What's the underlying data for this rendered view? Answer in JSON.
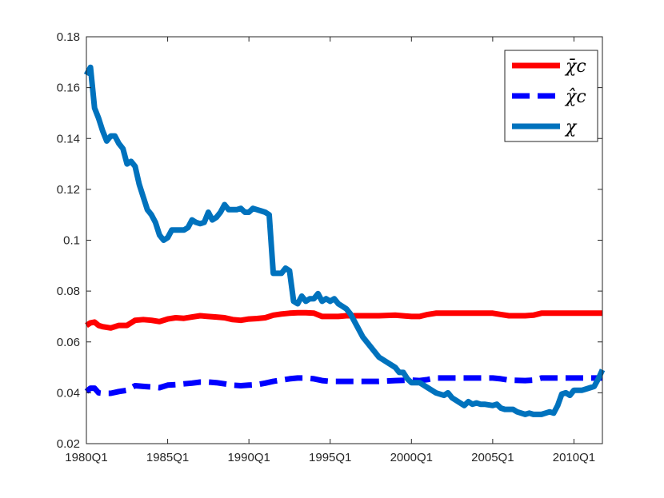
{
  "chart_data": {
    "type": "line",
    "title": "",
    "xlabel": "",
    "ylabel": "",
    "xlim": [
      1980.0,
      2011.75
    ],
    "ylim": [
      0.02,
      0.18
    ],
    "x_ticks": [
      {
        "value": 1980,
        "label": "1980Q1"
      },
      {
        "value": 1985,
        "label": "1985Q1"
      },
      {
        "value": 1990,
        "label": "1990Q1"
      },
      {
        "value": 1995,
        "label": "1995Q1"
      },
      {
        "value": 2000,
        "label": "2000Q1"
      },
      {
        "value": 2005,
        "label": "2005Q1"
      },
      {
        "value": 2010,
        "label": "2010Q1"
      }
    ],
    "y_ticks": [
      {
        "value": 0.02,
        "label": "0.02"
      },
      {
        "value": 0.04,
        "label": "0.04"
      },
      {
        "value": 0.06,
        "label": "0.06"
      },
      {
        "value": 0.08,
        "label": "0.08"
      },
      {
        "value": 0.1,
        "label": "0.1"
      },
      {
        "value": 0.12,
        "label": "0.12"
      },
      {
        "value": 0.14,
        "label": "0.14"
      },
      {
        "value": 0.16,
        "label": "0.16"
      },
      {
        "value": 0.18,
        "label": "0.18"
      }
    ],
    "grid": false,
    "legend_position": "top-right",
    "series": [
      {
        "name": "χ̄c",
        "color": "#ff0000",
        "dash": "solid",
        "points": [
          [
            1980.0,
            0.0665
          ],
          [
            1980.25,
            0.0675
          ],
          [
            1980.5,
            0.0678
          ],
          [
            1980.75,
            0.0665
          ],
          [
            1981.0,
            0.066
          ],
          [
            1981.5,
            0.0655
          ],
          [
            1982.0,
            0.0665
          ],
          [
            1982.5,
            0.0665
          ],
          [
            1983.0,
            0.0685
          ],
          [
            1983.5,
            0.0688
          ],
          [
            1984.0,
            0.0685
          ],
          [
            1984.5,
            0.068
          ],
          [
            1985.0,
            0.069
          ],
          [
            1985.5,
            0.0695
          ],
          [
            1986.0,
            0.0693
          ],
          [
            1986.5,
            0.0698
          ],
          [
            1987.0,
            0.0703
          ],
          [
            1987.5,
            0.07
          ],
          [
            1988.0,
            0.0698
          ],
          [
            1988.5,
            0.0695
          ],
          [
            1989.0,
            0.0688
          ],
          [
            1989.5,
            0.0685
          ],
          [
            1990.0,
            0.069
          ],
          [
            1990.5,
            0.0692
          ],
          [
            1991.0,
            0.0695
          ],
          [
            1991.5,
            0.0705
          ],
          [
            1992.0,
            0.071
          ],
          [
            1992.5,
            0.0713
          ],
          [
            1993.0,
            0.0715
          ],
          [
            1993.5,
            0.0715
          ],
          [
            1994.0,
            0.0713
          ],
          [
            1994.5,
            0.07
          ],
          [
            1995.0,
            0.07
          ],
          [
            1995.5,
            0.07
          ],
          [
            1996.0,
            0.0703
          ],
          [
            1997.0,
            0.0703
          ],
          [
            1998.0,
            0.0703
          ],
          [
            1999.0,
            0.0705
          ],
          [
            2000.0,
            0.07
          ],
          [
            2000.5,
            0.07
          ],
          [
            2001.0,
            0.0708
          ],
          [
            2001.5,
            0.0713
          ],
          [
            2002.0,
            0.0713
          ],
          [
            2003.0,
            0.0713
          ],
          [
            2004.0,
            0.0713
          ],
          [
            2005.0,
            0.0713
          ],
          [
            2005.5,
            0.0708
          ],
          [
            2006.0,
            0.0703
          ],
          [
            2007.0,
            0.0703
          ],
          [
            2007.5,
            0.0705
          ],
          [
            2008.0,
            0.0713
          ],
          [
            2009.0,
            0.0713
          ],
          [
            2010.0,
            0.0713
          ],
          [
            2011.75,
            0.0713
          ]
        ]
      },
      {
        "name": "χ̂c",
        "color": "#0000ff",
        "dash": "dashed",
        "points": [
          [
            1980.0,
            0.0405
          ],
          [
            1980.25,
            0.0418
          ],
          [
            1980.5,
            0.0418
          ],
          [
            1980.75,
            0.04
          ],
          [
            1981.0,
            0.0398
          ],
          [
            1981.5,
            0.0398
          ],
          [
            1982.0,
            0.0405
          ],
          [
            1982.5,
            0.041
          ],
          [
            1983.0,
            0.0428
          ],
          [
            1983.5,
            0.0425
          ],
          [
            1984.0,
            0.0423
          ],
          [
            1984.5,
            0.042
          ],
          [
            1985.0,
            0.043
          ],
          [
            1985.5,
            0.0432
          ],
          [
            1986.0,
            0.0435
          ],
          [
            1986.5,
            0.0438
          ],
          [
            1987.0,
            0.0442
          ],
          [
            1987.5,
            0.0442
          ],
          [
            1988.0,
            0.044
          ],
          [
            1988.5,
            0.0435
          ],
          [
            1989.0,
            0.043
          ],
          [
            1989.5,
            0.0428
          ],
          [
            1990.0,
            0.043
          ],
          [
            1990.5,
            0.0432
          ],
          [
            1991.0,
            0.0438
          ],
          [
            1991.5,
            0.0445
          ],
          [
            1992.0,
            0.045
          ],
          [
            1992.5,
            0.0455
          ],
          [
            1993.0,
            0.0458
          ],
          [
            1993.5,
            0.0458
          ],
          [
            1994.0,
            0.0455
          ],
          [
            1994.5,
            0.0448
          ],
          [
            1995.0,
            0.0445
          ],
          [
            1996.0,
            0.0445
          ],
          [
            1997.0,
            0.0445
          ],
          [
            1998.0,
            0.0445
          ],
          [
            1999.0,
            0.0448
          ],
          [
            2000.0,
            0.045
          ],
          [
            2000.5,
            0.0448
          ],
          [
            2001.0,
            0.0452
          ],
          [
            2001.5,
            0.0458
          ],
          [
            2002.0,
            0.0458
          ],
          [
            2003.0,
            0.0458
          ],
          [
            2004.0,
            0.0458
          ],
          [
            2005.0,
            0.0458
          ],
          [
            2005.5,
            0.0455
          ],
          [
            2006.0,
            0.045
          ],
          [
            2007.0,
            0.0448
          ],
          [
            2007.5,
            0.045
          ],
          [
            2008.0,
            0.0458
          ],
          [
            2009.0,
            0.0458
          ],
          [
            2010.0,
            0.0458
          ],
          [
            2011.75,
            0.0458
          ]
        ]
      },
      {
        "name": "χ",
        "color": "#0072bd",
        "dash": "solid",
        "points": [
          [
            1980.0,
            0.165
          ],
          [
            1980.25,
            0.168
          ],
          [
            1980.5,
            0.152
          ],
          [
            1980.75,
            0.148
          ],
          [
            1981.0,
            0.143
          ],
          [
            1981.25,
            0.139
          ],
          [
            1981.5,
            0.141
          ],
          [
            1981.75,
            0.141
          ],
          [
            1982.0,
            0.138
          ],
          [
            1982.25,
            0.136
          ],
          [
            1982.5,
            0.13
          ],
          [
            1982.75,
            0.131
          ],
          [
            1983.0,
            0.129
          ],
          [
            1983.25,
            0.122
          ],
          [
            1983.5,
            0.117
          ],
          [
            1983.75,
            0.112
          ],
          [
            1984.0,
            0.11
          ],
          [
            1984.25,
            0.107
          ],
          [
            1984.5,
            0.102
          ],
          [
            1984.75,
            0.1
          ],
          [
            1985.0,
            0.101
          ],
          [
            1985.25,
            0.104
          ],
          [
            1985.5,
            0.104
          ],
          [
            1985.75,
            0.104
          ],
          [
            1986.0,
            0.104
          ],
          [
            1986.25,
            0.105
          ],
          [
            1986.5,
            0.108
          ],
          [
            1986.75,
            0.107
          ],
          [
            1987.0,
            0.1065
          ],
          [
            1987.25,
            0.107
          ],
          [
            1987.5,
            0.111
          ],
          [
            1987.75,
            0.108
          ],
          [
            1988.0,
            0.109
          ],
          [
            1988.25,
            0.111
          ],
          [
            1988.5,
            0.114
          ],
          [
            1988.75,
            0.112
          ],
          [
            1989.0,
            0.112
          ],
          [
            1989.25,
            0.112
          ],
          [
            1989.5,
            0.1125
          ],
          [
            1989.75,
            0.111
          ],
          [
            1990.0,
            0.111
          ],
          [
            1990.25,
            0.1125
          ],
          [
            1990.5,
            0.112
          ],
          [
            1990.75,
            0.1115
          ],
          [
            1991.0,
            0.111
          ],
          [
            1991.25,
            0.11
          ],
          [
            1991.5,
            0.087
          ],
          [
            1991.75,
            0.087
          ],
          [
            1992.0,
            0.087
          ],
          [
            1992.25,
            0.089
          ],
          [
            1992.5,
            0.088
          ],
          [
            1992.75,
            0.076
          ],
          [
            1993.0,
            0.075
          ],
          [
            1993.25,
            0.078
          ],
          [
            1993.5,
            0.076
          ],
          [
            1993.75,
            0.077
          ],
          [
            1994.0,
            0.077
          ],
          [
            1994.25,
            0.079
          ],
          [
            1994.5,
            0.076
          ],
          [
            1994.75,
            0.077
          ],
          [
            1995.0,
            0.076
          ],
          [
            1995.25,
            0.077
          ],
          [
            1995.5,
            0.075
          ],
          [
            1995.75,
            0.074
          ],
          [
            1996.0,
            0.073
          ],
          [
            1996.25,
            0.071
          ],
          [
            1996.5,
            0.068
          ],
          [
            1996.75,
            0.065
          ],
          [
            1997.0,
            0.062
          ],
          [
            1997.5,
            0.058
          ],
          [
            1998.0,
            0.054
          ],
          [
            1998.5,
            0.052
          ],
          [
            1999.0,
            0.05
          ],
          [
            1999.25,
            0.048
          ],
          [
            1999.5,
            0.048
          ],
          [
            1999.75,
            0.0455
          ],
          [
            2000.0,
            0.044
          ],
          [
            2000.5,
            0.044
          ],
          [
            2001.0,
            0.042
          ],
          [
            2001.5,
            0.04
          ],
          [
            2002.0,
            0.039
          ],
          [
            2002.25,
            0.04
          ],
          [
            2002.5,
            0.038
          ],
          [
            2003.0,
            0.036
          ],
          [
            2003.25,
            0.035
          ],
          [
            2003.5,
            0.0365
          ],
          [
            2003.75,
            0.0355
          ],
          [
            2004.0,
            0.036
          ],
          [
            2004.25,
            0.0355
          ],
          [
            2004.5,
            0.0355
          ],
          [
            2005.0,
            0.035
          ],
          [
            2005.25,
            0.0355
          ],
          [
            2005.5,
            0.034
          ],
          [
            2005.75,
            0.0335
          ],
          [
            2006.0,
            0.0335
          ],
          [
            2006.25,
            0.0335
          ],
          [
            2006.5,
            0.0325
          ],
          [
            2007.0,
            0.0315
          ],
          [
            2007.25,
            0.032
          ],
          [
            2007.5,
            0.0315
          ],
          [
            2008.0,
            0.0315
          ],
          [
            2008.25,
            0.032
          ],
          [
            2008.5,
            0.0325
          ],
          [
            2008.75,
            0.032
          ],
          [
            2009.0,
            0.035
          ],
          [
            2009.25,
            0.0395
          ],
          [
            2009.5,
            0.04
          ],
          [
            2009.75,
            0.039
          ],
          [
            2010.0,
            0.041
          ],
          [
            2010.25,
            0.041
          ],
          [
            2010.5,
            0.041
          ],
          [
            2010.75,
            0.0415
          ],
          [
            2011.0,
            0.042
          ],
          [
            2011.25,
            0.0425
          ],
          [
            2011.5,
            0.0455
          ],
          [
            2011.75,
            0.049
          ]
        ]
      }
    ]
  }
}
